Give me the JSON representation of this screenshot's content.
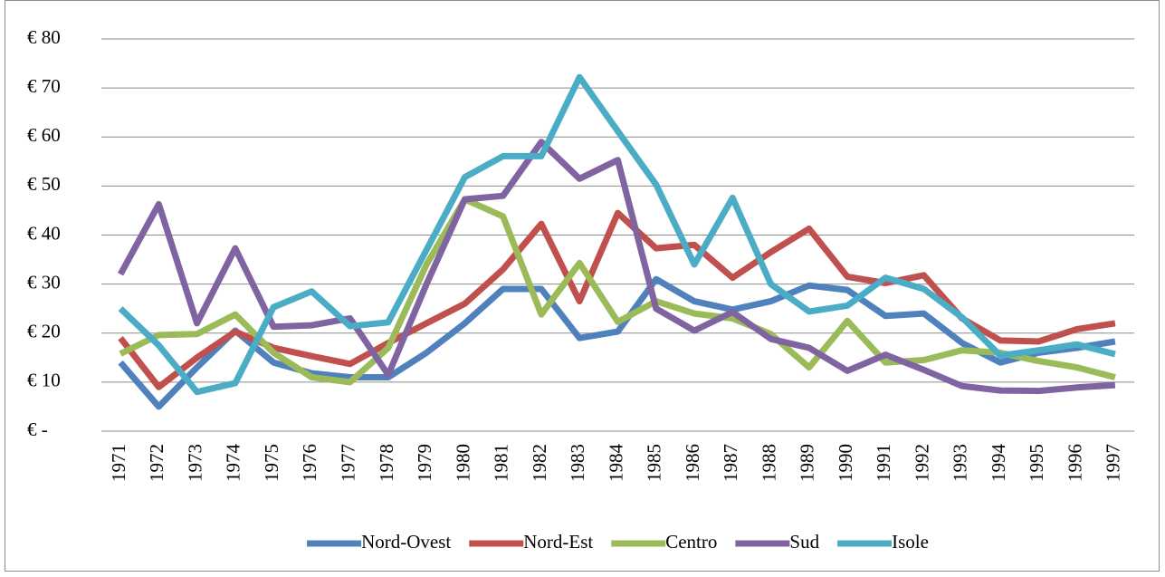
{
  "chart_data": {
    "type": "line",
    "categories": [
      "1971",
      "1972",
      "1973",
      "1974",
      "1975",
      "1976",
      "1977",
      "1978",
      "1979",
      "1980",
      "1981",
      "1982",
      "1983",
      "1984",
      "1985",
      "1986",
      "1987",
      "1988",
      "1989",
      "1990",
      "1991",
      "1992",
      "1993",
      "1994",
      "1995",
      "1996",
      "1997"
    ],
    "series": [
      {
        "name": "Nord-Ovest",
        "color": "#4f81bd",
        "values": [
          14,
          5,
          13,
          20.5,
          14,
          11.8,
          11,
          11,
          16,
          22,
          29,
          29,
          19,
          20.3,
          31,
          26.5,
          24.8,
          26.5,
          29.7,
          28.8,
          23.5,
          24,
          18,
          14,
          16,
          17,
          18.3
        ]
      },
      {
        "name": "Nord-Est",
        "color": "#c0504d",
        "values": [
          19,
          9,
          15,
          20.3,
          17,
          15.3,
          13.7,
          18,
          22,
          26,
          33,
          42.3,
          26.5,
          44.5,
          37.3,
          38,
          31.3,
          36.5,
          41.3,
          31.5,
          30.2,
          31.8,
          23,
          18.5,
          18.3,
          20.8,
          22
        ]
      },
      {
        "name": "Centro",
        "color": "#9bbb59",
        "values": [
          15.8,
          19.6,
          19.8,
          23.8,
          16,
          11,
          10,
          17,
          34,
          47.3,
          43.8,
          23.8,
          34.3,
          22.3,
          26.5,
          24,
          23,
          19.8,
          13,
          22.5,
          14,
          14.5,
          16.5,
          16,
          14.3,
          13,
          11
        ]
      },
      {
        "name": "Sud",
        "color": "#8064a2",
        "values": [
          32,
          46.3,
          22,
          37.3,
          21.3,
          21.6,
          23,
          11.5,
          30,
          47.3,
          48,
          59,
          51.5,
          55.3,
          25,
          20.5,
          24.3,
          18.8,
          17,
          12.3,
          15.6,
          12.5,
          9.2,
          8.3,
          8.2,
          8.9,
          9.4
        ]
      },
      {
        "name": "Isole",
        "color": "#4bacc6",
        "values": [
          25,
          17.5,
          8,
          9.8,
          25.3,
          28.5,
          21.4,
          22.2,
          37,
          51.8,
          56.1,
          56.1,
          72.2,
          61.2,
          50.3,
          34,
          47.6,
          30,
          24.4,
          25.6,
          31.3,
          29,
          23.2,
          15.4,
          16.5,
          17.7,
          15.7
        ]
      }
    ],
    "ylim": [
      0,
      80
    ],
    "yticks": [
      {
        "value": 0,
        "label": "€ -"
      },
      {
        "value": 10,
        "label": "€ 10"
      },
      {
        "value": 20,
        "label": "€ 20"
      },
      {
        "value": 30,
        "label": "€ 30"
      },
      {
        "value": 40,
        "label": "€ 40"
      },
      {
        "value": 50,
        "label": "€ 50"
      },
      {
        "value": 60,
        "label": "€ 60"
      },
      {
        "value": 70,
        "label": "€ 70"
      },
      {
        "value": 80,
        "label": "€ 80"
      }
    ],
    "grid": true,
    "legend": "bottom"
  }
}
